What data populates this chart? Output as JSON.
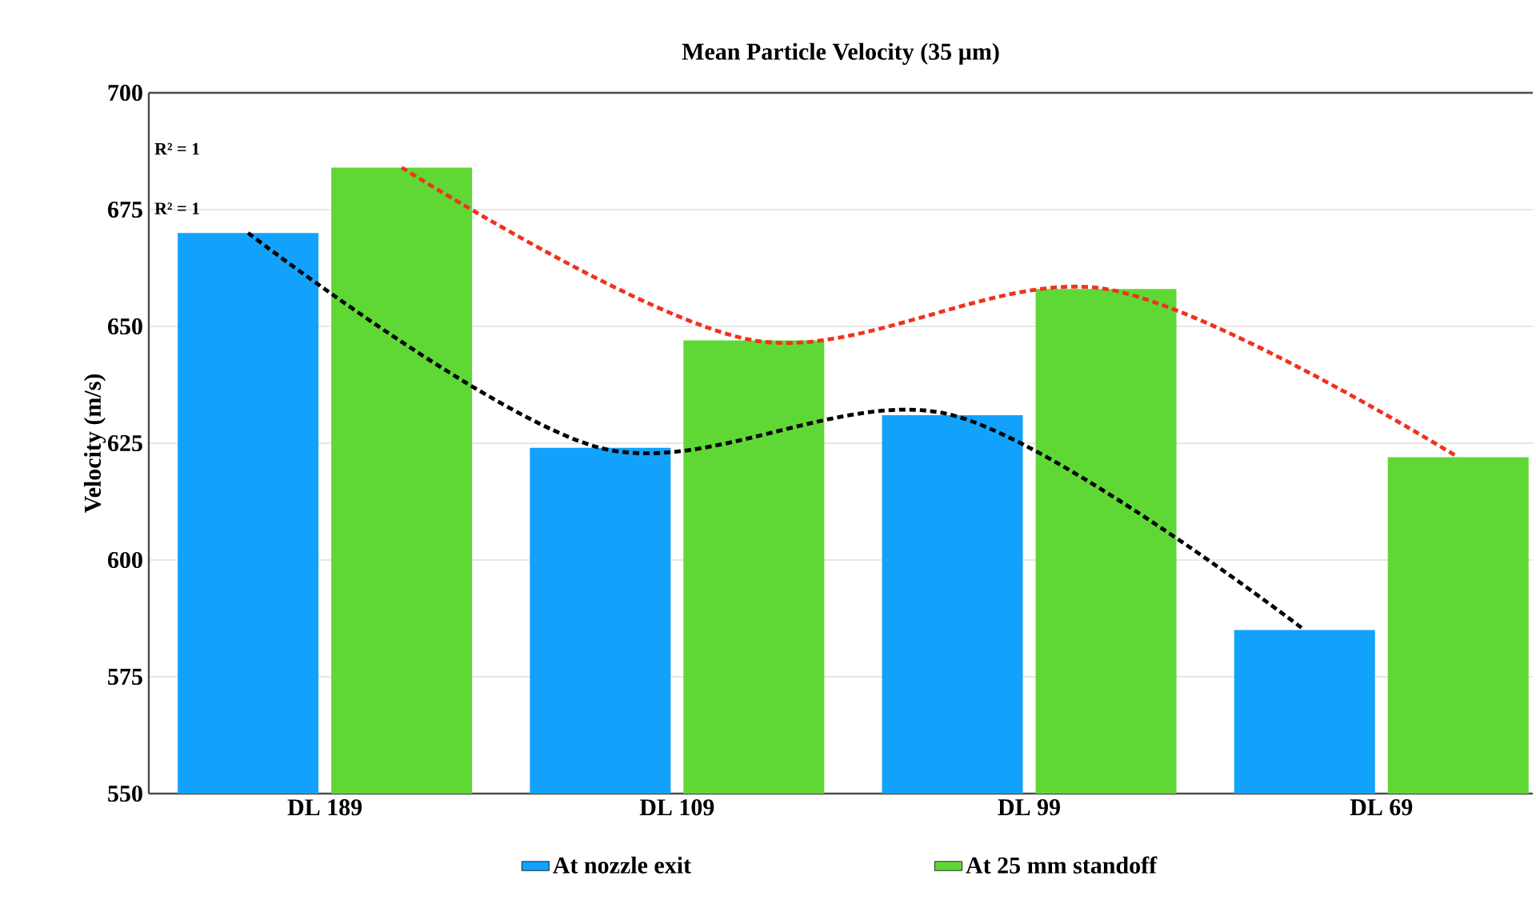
{
  "chart_data": {
    "type": "bar",
    "title": "Mean Particle Velocity (35 µm)",
    "ylabel": "Velocity (m/s)",
    "categories": [
      "DL 189",
      "DL 109",
      "DL 99",
      "DL 69"
    ],
    "series": [
      {
        "name": "At nozzle exit",
        "color": "#12a2fc",
        "values": [
          670,
          624,
          631,
          585
        ]
      },
      {
        "name": "At 25 mm standoff",
        "color": "#5fd836",
        "values": [
          684,
          647,
          658,
          622
        ]
      },
      {
        "type": "line",
        "color": "#000000",
        "line_style": "dashed",
        "values": [
          670,
          624,
          631,
          585
        ]
      },
      {
        "type": "line",
        "color": "#f0321e",
        "line_style": "dashed",
        "values": [
          684,
          647,
          658,
          622
        ]
      }
    ],
    "ylim": [
      550,
      700
    ],
    "yticks": [
      550,
      575,
      600,
      625,
      650,
      675,
      700
    ],
    "grid": "y",
    "legend": "bottom",
    "annotations": [
      "R² = 1",
      "R² = 1"
    ]
  }
}
